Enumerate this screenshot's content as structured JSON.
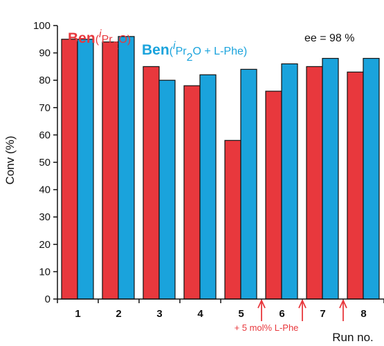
{
  "chart_data": {
    "type": "bar",
    "categories": [
      "1",
      "2",
      "3",
      "4",
      "5",
      "6",
      "7",
      "8"
    ],
    "series": [
      {
        "name": "Ben(iPr2O)",
        "color": "#e8383d",
        "values": [
          95,
          94,
          85,
          78,
          58,
          76,
          85,
          83
        ]
      },
      {
        "name": "Ben(iPr2O + L-Phe)",
        "color": "#1aa3dc",
        "values": [
          95,
          96,
          80,
          82,
          84,
          86,
          88,
          88
        ]
      }
    ],
    "ylabel": "Conv (%)",
    "xlabel": "Run no.",
    "ylim": [
      0,
      100
    ],
    "yticks": [
      0,
      10,
      20,
      30,
      40,
      50,
      60,
      70,
      80,
      90,
      100
    ],
    "grid": false,
    "legend": {
      "placement": "top-left",
      "entries": [
        {
          "main": "Ben",
          "open": "(",
          "italic": "i",
          "text1": "Pr",
          "sub": "2",
          "text2": "O)",
          "color": "#e8383d"
        },
        {
          "main": "Ben",
          "open": "(",
          "italic": "i",
          "text1": "Pr",
          "sub": "2",
          "text2": "O + L-Phe)",
          "color": "#1aa3dc"
        }
      ]
    },
    "annotations": {
      "ee": "ee = 98 %",
      "addition": "+ 5 mol% L-Phe",
      "arrow_color": "#e8383d",
      "arrows_before_runs": [
        "6",
        "7",
        "8"
      ]
    }
  }
}
